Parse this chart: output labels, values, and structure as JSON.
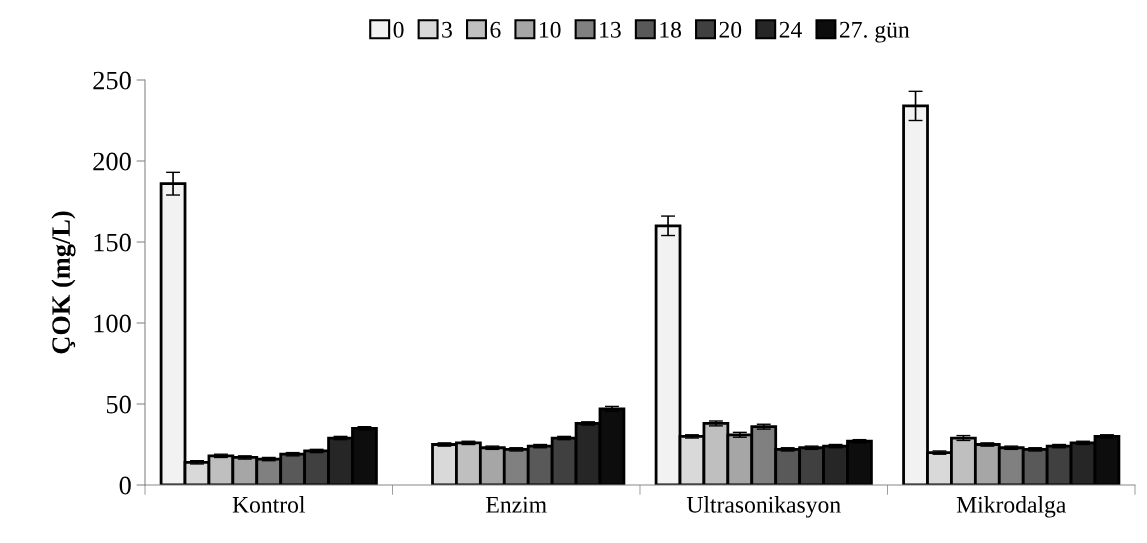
{
  "chart_data": {
    "type": "bar",
    "ylabel": "ÇOK (mg/L)",
    "categories": [
      "Kontrol",
      "Enzim",
      "Ultrasonikasyon",
      "Mikrodalga"
    ],
    "ylim": [
      0,
      250
    ],
    "yticks": [
      0,
      50,
      100,
      150,
      200,
      250
    ],
    "grid": false,
    "legend": "top",
    "series": [
      {
        "name": "0",
        "color": "#f2f2f2",
        "values": [
          186,
          null,
          160,
          234
        ],
        "errors": [
          7,
          null,
          6,
          9
        ]
      },
      {
        "name": "3",
        "color": "#d9d9d9",
        "values": [
          14,
          25,
          30,
          20
        ],
        "errors": [
          1,
          1,
          1,
          1
        ]
      },
      {
        "name": "6",
        "color": "#bfbfbf",
        "values": [
          18,
          26,
          38,
          29
        ],
        "errors": [
          1,
          1,
          1.5,
          1.5
        ]
      },
      {
        "name": "10",
        "color": "#a6a6a6",
        "values": [
          17,
          23,
          31,
          25
        ],
        "errors": [
          1,
          1,
          1.5,
          1
        ]
      },
      {
        "name": "13",
        "color": "#808080",
        "values": [
          16,
          22,
          36,
          23
        ],
        "errors": [
          1,
          1,
          1.5,
          1
        ]
      },
      {
        "name": "18",
        "color": "#595959",
        "values": [
          19,
          24,
          22,
          22
        ],
        "errors": [
          1,
          1,
          1,
          1
        ]
      },
      {
        "name": "20",
        "color": "#404040",
        "values": [
          21,
          29,
          23,
          24
        ],
        "errors": [
          1,
          1,
          1,
          1
        ]
      },
      {
        "name": "24",
        "color": "#262626",
        "values": [
          29,
          38,
          24,
          26
        ],
        "errors": [
          1,
          1,
          1,
          1
        ]
      },
      {
        "name": "27. gün",
        "color": "#0d0d0d",
        "values": [
          35,
          47,
          27,
          30
        ],
        "errors": [
          1,
          1.5,
          1,
          1
        ]
      }
    ]
  }
}
